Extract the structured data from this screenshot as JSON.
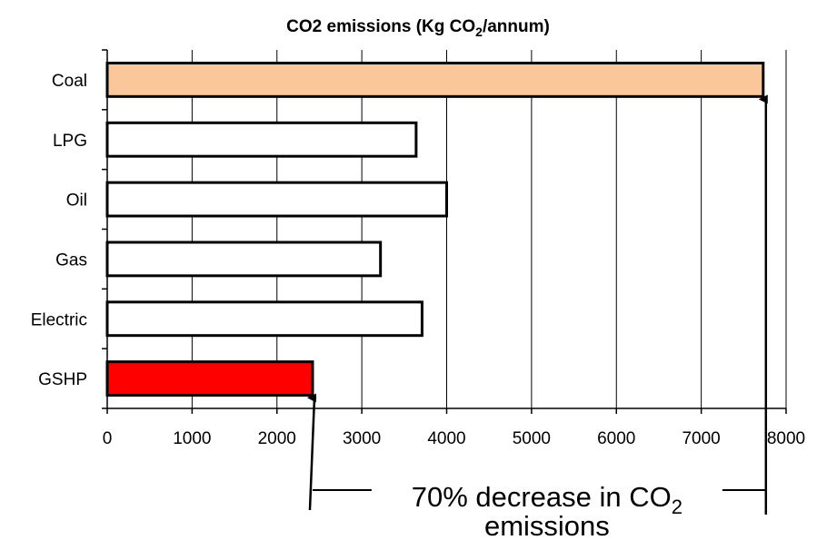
{
  "chart_data": {
    "type": "bar",
    "orientation": "horizontal",
    "title_main": "CO2 emissions (Kg CO",
    "title_sub": "2",
    "title_tail": "/annum)",
    "categories": [
      "Coal",
      "LPG",
      "Oil",
      "Gas",
      "Electric",
      "GSHP"
    ],
    "values": [
      7730,
      3640,
      4000,
      3220,
      3710,
      2420
    ],
    "bar_colors": [
      "#f9c79a",
      "#ffffff",
      "#ffffff",
      "#ffffff",
      "#ffffff",
      "#ff0000"
    ],
    "xlim": [
      0,
      8000
    ],
    "xticks": [
      0,
      1000,
      2000,
      3000,
      4000,
      5000,
      6000,
      7000,
      8000
    ],
    "grid": "vertical",
    "annotation": {
      "line1_main": "70% decrease in CO",
      "line1_sub": "2",
      "line2": "emissions",
      "from_category": "GSHP",
      "to_category": "Coal"
    }
  }
}
